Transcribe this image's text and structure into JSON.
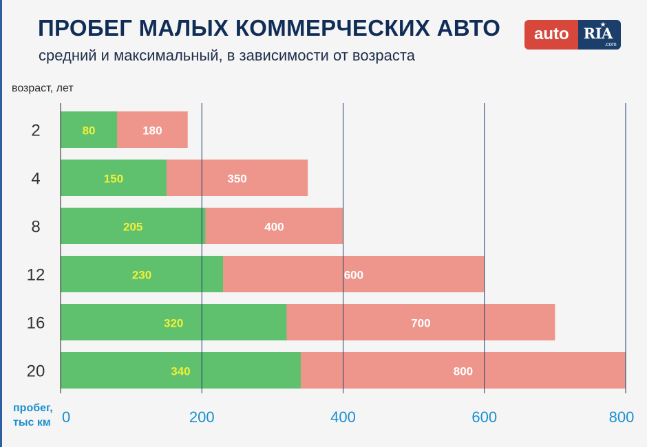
{
  "header": {
    "title": "ПРОБЕГ МАЛЫХ КОММЕРЧЕСКИХ АВТО",
    "subtitle": "средний и максимальный, в зависимости от возраста"
  },
  "logo": {
    "part1": "auto",
    "part2": "RIA",
    "suffix": ".com"
  },
  "chart_data": {
    "type": "bar",
    "orientation": "horizontal",
    "stacked": false,
    "title": "ПРОБЕГ МАЛЫХ КОММЕРЧЕСКИХ АВТО",
    "subtitle": "средний и максимальный, в зависимости от возраста",
    "ylabel": "возраст, лет",
    "xlabel_line1": "пробег,",
    "xlabel_line2": "тыс км",
    "categories": [
      "2",
      "4",
      "8",
      "12",
      "16",
      "20"
    ],
    "series": [
      {
        "color": "#ee968c",
        "label_color": "#ffffff",
        "values": [
          180,
          350,
          400,
          600,
          700,
          800
        ]
      },
      {
        "color": "#5fc16e",
        "label_color": "#f1ef3a",
        "values": [
          80,
          150,
          205,
          230,
          320,
          340
        ]
      }
    ],
    "xlim": [
      0,
      800
    ],
    "x_ticks": [
      0,
      200,
      400,
      600,
      800
    ],
    "grid": "vertical",
    "grid_color": "#1c3e6b",
    "tick_label_color": "#1a8fd0"
  }
}
